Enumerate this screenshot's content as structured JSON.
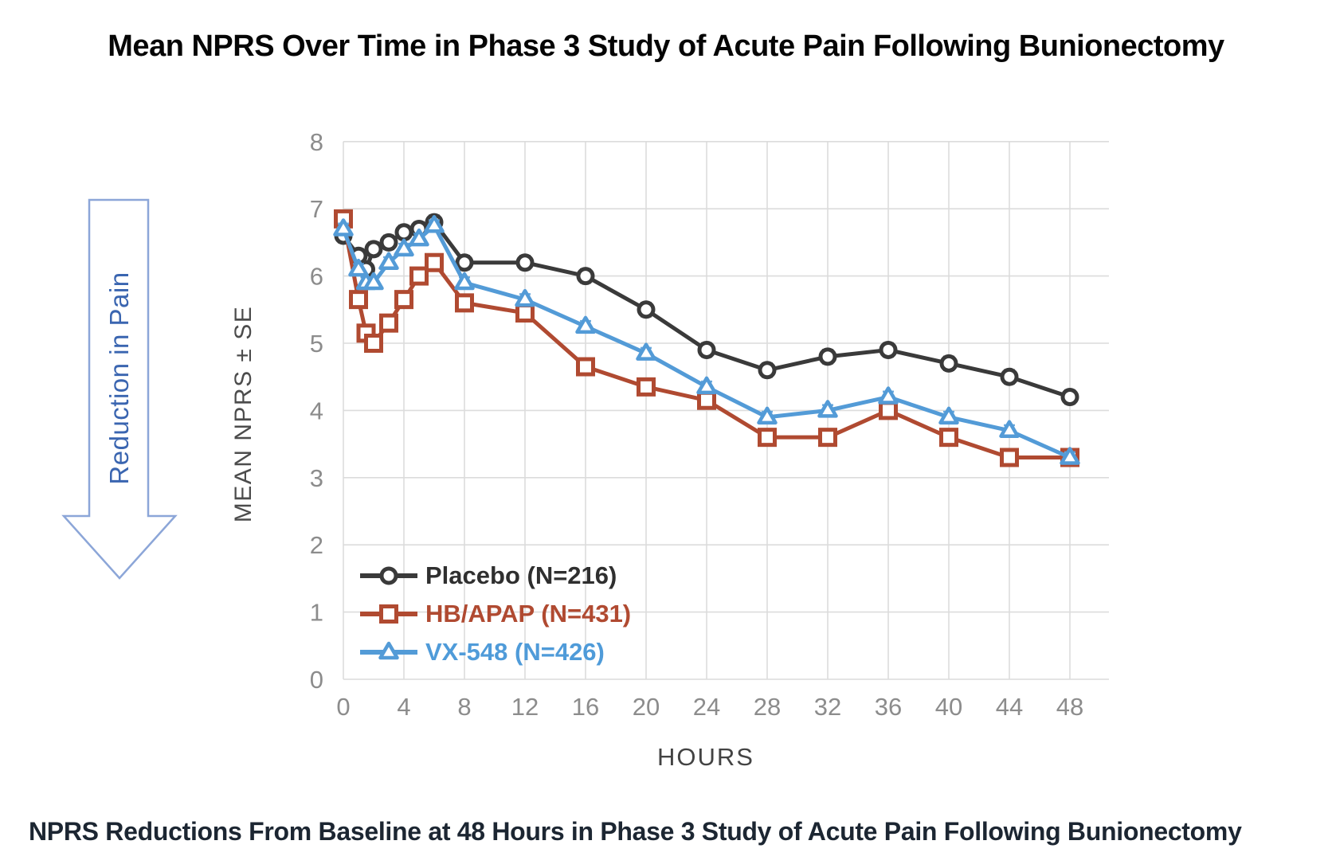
{
  "header": {
    "title": "Mean NPRS Over Time in Phase 3 Study of Acute Pain Following Bunionectomy"
  },
  "arrow": {
    "label": "Reduction in Pain",
    "outline_color": "#8ca6d8",
    "text_color": "#3a65b0"
  },
  "chart_data": {
    "type": "line",
    "title": "Mean NPRS Over Time in Phase 3 Study of Acute Pain Following Bunionectomy",
    "xlabel": "HOURS",
    "ylabel": "MEAN NPRS ± SE",
    "xlim": [
      0,
      48
    ],
    "ylim": [
      0,
      8
    ],
    "grid": true,
    "legend_position": "inside-bottom-left",
    "xticks": [
      0,
      4,
      8,
      12,
      16,
      20,
      24,
      28,
      32,
      36,
      40,
      44,
      48
    ],
    "yticks": [
      0,
      1,
      2,
      3,
      4,
      5,
      6,
      7,
      8
    ],
    "x": [
      0,
      1,
      1.5,
      2,
      3,
      4,
      5,
      6,
      8,
      12,
      16,
      20,
      24,
      28,
      32,
      36,
      40,
      44,
      48
    ],
    "series": [
      {
        "name": "Placebo (N=216)",
        "marker": "circle",
        "color": "#3a3a3a",
        "label_color": "#2f2f2f",
        "se": 0.1,
        "values": [
          6.6,
          6.3,
          6.1,
          6.4,
          6.5,
          6.65,
          6.7,
          6.8,
          6.2,
          6.2,
          6.0,
          5.5,
          4.9,
          4.6,
          4.8,
          4.9,
          4.7,
          4.5,
          4.2
        ]
      },
      {
        "name": "HB/APAP (N=431)",
        "marker": "square",
        "color": "#b04a31",
        "label_color": "#b04a31",
        "se": 0.08,
        "values": [
          6.85,
          5.65,
          5.15,
          5.0,
          5.3,
          5.65,
          6.0,
          6.2,
          5.6,
          5.45,
          4.65,
          4.35,
          4.15,
          3.6,
          3.6,
          4.0,
          3.6,
          3.3,
          3.3
        ]
      },
      {
        "name": "VX-548 (N=426)",
        "marker": "triangle",
        "color": "#539bd7",
        "label_color": "#4f9bd9",
        "se": 0.08,
        "values": [
          6.7,
          6.1,
          5.9,
          5.9,
          6.2,
          6.4,
          6.55,
          6.75,
          5.9,
          5.65,
          5.25,
          4.85,
          4.35,
          3.9,
          4.0,
          4.2,
          3.9,
          3.7,
          3.3
        ]
      }
    ],
    "style": {
      "grid_color": "#dcdcdc",
      "tick_color": "#8c8c8c"
    }
  },
  "footer": {
    "caption": "NPRS Reductions From Baseline at 48 Hours in Phase 3 Study of Acute Pain Following Bunionectomy"
  }
}
